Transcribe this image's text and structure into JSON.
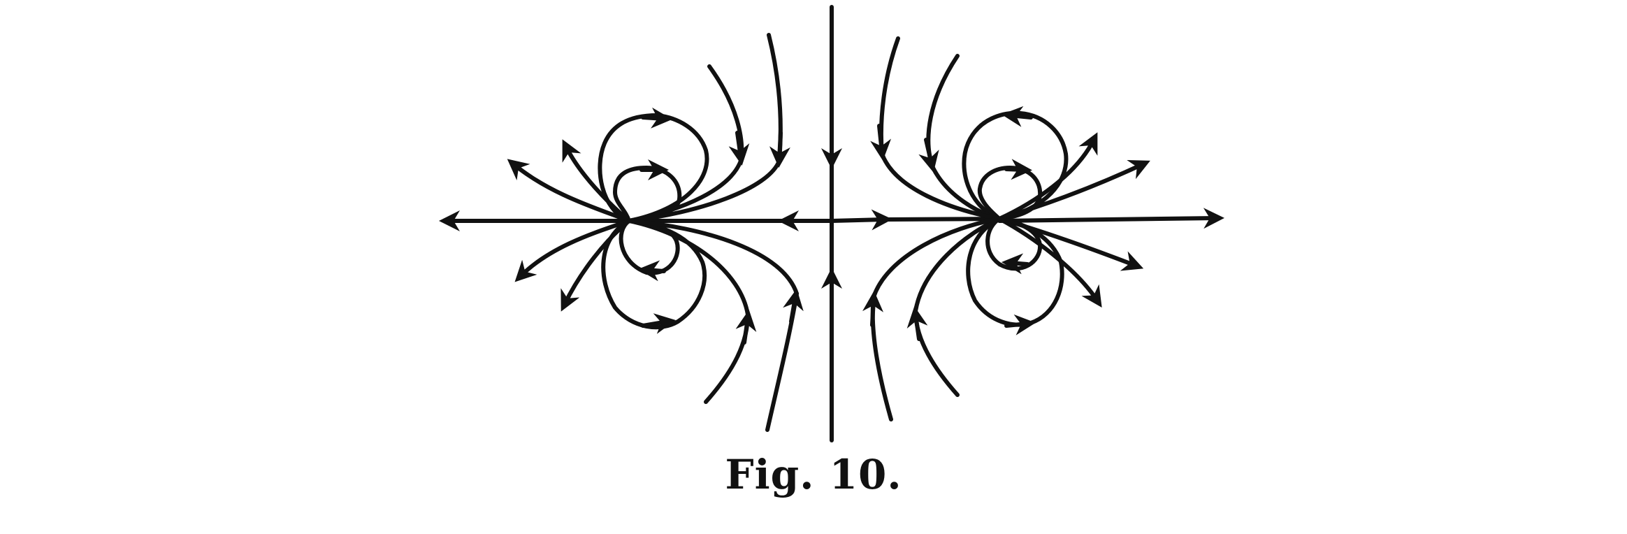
{
  "figure": {
    "caption": "Fig. 10.",
    "ink_color": "#111111",
    "background": "#ffffff"
  }
}
